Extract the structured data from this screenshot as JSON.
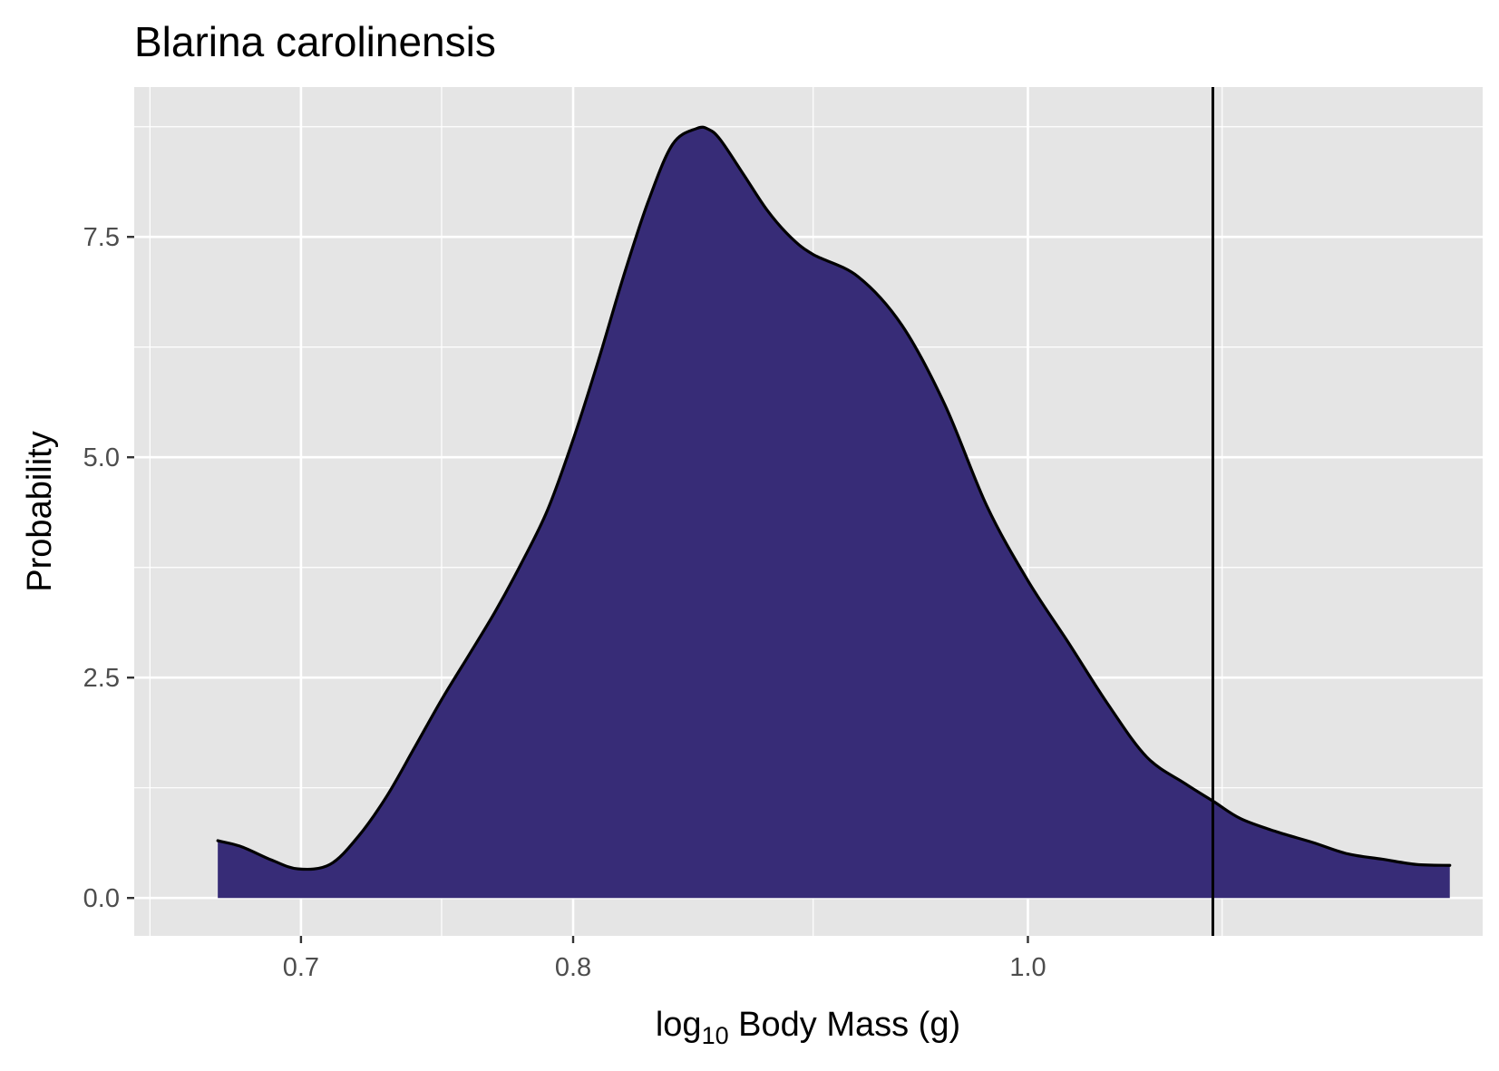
{
  "chart_data": {
    "type": "area",
    "title": "Blarina carolinensis",
    "xlabel": {
      "prefix": "log",
      "subscript": "10",
      "rest": " Body Mass (g)"
    },
    "ylabel": "Probability",
    "x_scale": "log10",
    "x_ticks": [
      {
        "value": 0.7,
        "label": "0.7"
      },
      {
        "value": 0.8,
        "label": "0.8"
      },
      {
        "value": 1.0,
        "label": "1.0"
      }
    ],
    "x_minor_ticks": [
      0.65,
      0.75,
      0.9,
      1.1
    ],
    "y_ticks": [
      {
        "value": 0.0,
        "label": "0.0"
      },
      {
        "value": 2.5,
        "label": "2.5"
      },
      {
        "value": 5.0,
        "label": "5.0"
      },
      {
        "value": 7.5,
        "label": "7.5"
      }
    ],
    "y_minor_ticks": [
      1.25,
      3.75,
      6.25,
      8.75
    ],
    "xlim": [
      0.645,
      1.25
    ],
    "ylim": [
      -0.43,
      9.2
    ],
    "grid": true,
    "fill_color": "#372C77",
    "line_color": "#000000",
    "panel_color": "#E5E5E5",
    "vline": {
      "x": 1.095
    },
    "series": [
      {
        "x": [
          0.672,
          0.68,
          0.69,
          0.699,
          0.71,
          0.72,
          0.73,
          0.74,
          0.75,
          0.76,
          0.77,
          0.78,
          0.79,
          0.8,
          0.81,
          0.82,
          0.83,
          0.84,
          0.85,
          0.855,
          0.86,
          0.87,
          0.88,
          0.89,
          0.9,
          0.92,
          0.94,
          0.96,
          0.98,
          1.0,
          1.02,
          1.04,
          1.06,
          1.08,
          1.095,
          1.11,
          1.13,
          1.15,
          1.17,
          1.19,
          1.21,
          1.23
        ],
        "y": [
          0.65,
          0.58,
          0.43,
          0.33,
          0.38,
          0.7,
          1.15,
          1.7,
          2.25,
          2.75,
          3.25,
          3.8,
          4.4,
          5.2,
          6.1,
          7.05,
          7.9,
          8.55,
          8.73,
          8.72,
          8.6,
          8.2,
          7.8,
          7.5,
          7.3,
          7.05,
          6.5,
          5.6,
          4.45,
          3.6,
          2.9,
          2.2,
          1.6,
          1.3,
          1.1,
          0.9,
          0.75,
          0.63,
          0.5,
          0.44,
          0.38,
          0.37
        ]
      }
    ]
  }
}
